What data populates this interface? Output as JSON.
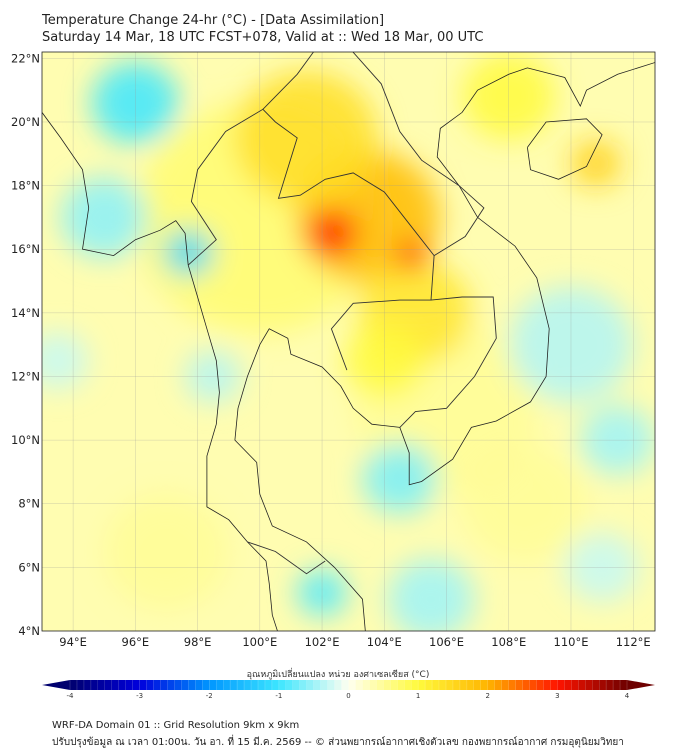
{
  "title": "Temperature Change 24-hr (°C) - [Data Assimilation]",
  "subtitle": "Saturday 14 Mar, 18 UTC FCST+078, Valid at :: Wed 18 Mar, 00 UTC",
  "colorbar": {
    "label": "อุณหภูมิเปลี่ยนแปลง หน่วย องศาเซลเซียส (°C)",
    "min": -4,
    "max": 4,
    "ticks": [
      "-4",
      "-3",
      "-2",
      "-1",
      "0",
      "1",
      "2",
      "3",
      "4"
    ]
  },
  "footer": {
    "line1": "WRF-DA Domain 01 :: Grid Resolution 9km x 9km",
    "line2": "ปรับปรุงข้อมูล ณ เวลา 01:00น. วัน อา. ที่ 15 มี.ค. 2569 -- © ส่วนพยากรณ์อากาศเชิงตัวเลข กองพยากรณ์อากาศ กรมอุตุนิยมวิทยา"
  },
  "chart_data": {
    "type": "heatmap",
    "title": "Temperature Change 24-hr (°C)",
    "lon_range": [
      93.0,
      112.7
    ],
    "lat_range": [
      4.0,
      22.2
    ],
    "x_ticks": [
      "94°E",
      "96°E",
      "98°E",
      "100°E",
      "102°E",
      "104°E",
      "106°E",
      "108°E",
      "110°E",
      "112°E"
    ],
    "x_tick_values": [
      94,
      96,
      98,
      100,
      102,
      104,
      106,
      108,
      110,
      112
    ],
    "y_ticks": [
      "4°N",
      "6°N",
      "8°N",
      "10°N",
      "12°N",
      "14°N",
      "16°N",
      "18°N",
      "20°N",
      "22°N"
    ],
    "y_tick_values": [
      4,
      6,
      8,
      10,
      12,
      14,
      16,
      18,
      20,
      22
    ],
    "grid": true,
    "field_features": [
      {
        "lon": 100.0,
        "lat": 17.0,
        "value": 0.7,
        "spread": 4.0
      },
      {
        "lon": 106.0,
        "lat": 11.0,
        "value": 0.5,
        "spread": 3.0
      },
      {
        "lon": 97.0,
        "lat": 6.5,
        "value": 0.5,
        "spread": 2.0
      },
      {
        "lon": 108.5,
        "lat": 8.0,
        "value": 0.5,
        "spread": 2.0
      },
      {
        "lon": 103.5,
        "lat": 17.0,
        "value": 1.9,
        "spread": 2.3
      },
      {
        "lon": 101.5,
        "lat": 19.5,
        "value": 1.4,
        "spread": 2.3
      },
      {
        "lon": 105.0,
        "lat": 14.0,
        "value": 1.3,
        "spread": 1.8
      },
      {
        "lon": 104.0,
        "lat": 12.5,
        "value": 1.0,
        "spread": 1.3
      },
      {
        "lon": 108.0,
        "lat": 20.8,
        "value": 1.0,
        "spread": 1.5
      },
      {
        "lon": 110.8,
        "lat": 18.7,
        "value": 1.6,
        "spread": 0.8
      },
      {
        "lon": 102.3,
        "lat": 16.5,
        "value": 3.0,
        "spread": 0.8
      },
      {
        "lon": 104.9,
        "lat": 15.8,
        "value": 3.0,
        "spread": 0.5
      },
      {
        "lon": 96.0,
        "lat": 20.6,
        "value": -1.0,
        "spread": 1.4
      },
      {
        "lon": 95.0,
        "lat": 17.0,
        "value": -0.6,
        "spread": 1.4
      },
      {
        "lon": 97.7,
        "lat": 15.9,
        "value": -1.2,
        "spread": 0.8
      },
      {
        "lon": 93.5,
        "lat": 12.5,
        "value": -0.3,
        "spread": 1.0
      },
      {
        "lon": 98.5,
        "lat": 12.0,
        "value": -0.4,
        "spread": 0.9
      },
      {
        "lon": 102.0,
        "lat": 5.2,
        "value": -0.9,
        "spread": 0.8
      },
      {
        "lon": 104.5,
        "lat": 8.8,
        "value": -0.7,
        "spread": 1.2
      },
      {
        "lon": 105.5,
        "lat": 5.0,
        "value": -0.5,
        "spread": 1.4
      },
      {
        "lon": 110.0,
        "lat": 13.0,
        "value": -0.4,
        "spread": 2.0
      },
      {
        "lon": 111.5,
        "lat": 10.0,
        "value": -0.5,
        "spread": 1.2
      },
      {
        "lon": 111.0,
        "lat": 6.0,
        "value": -0.3,
        "spread": 1.2
      }
    ]
  }
}
